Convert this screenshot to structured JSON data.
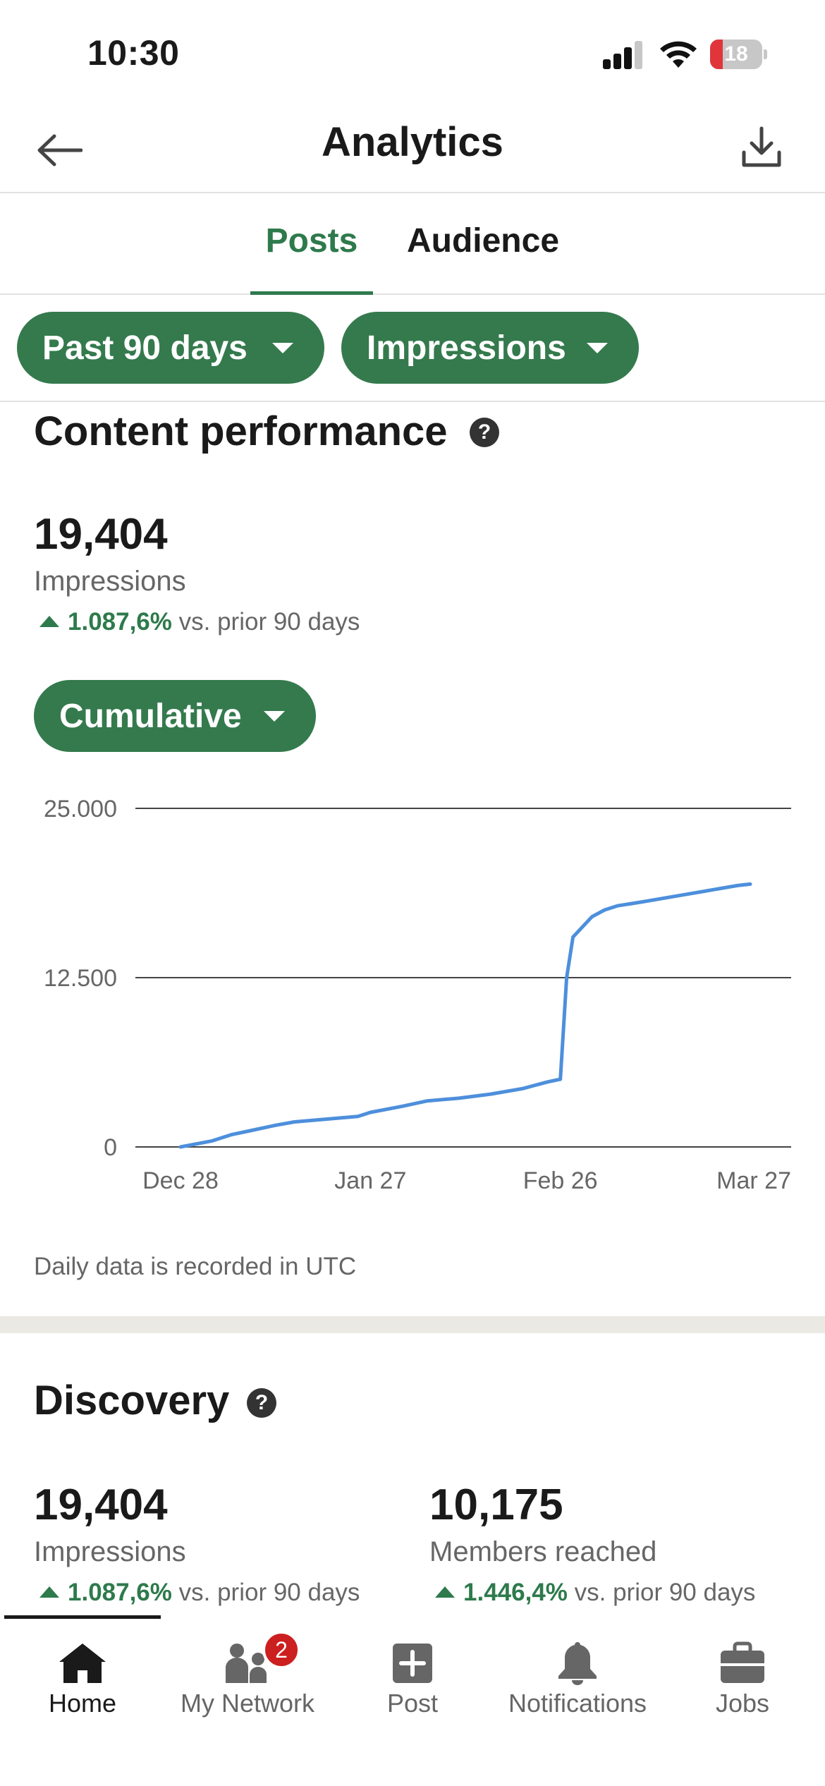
{
  "status_bar": {
    "time": "10:30",
    "battery_level": "18",
    "battery_color": "#e0353b",
    "icons": [
      "signal-icon",
      "wifi-icon",
      "battery-icon"
    ]
  },
  "header": {
    "title": "Analytics",
    "back_icon": "back-arrow-icon",
    "download_icon": "download-icon"
  },
  "tabs": [
    {
      "label": "Posts",
      "active": true
    },
    {
      "label": "Audience",
      "active": false
    }
  ],
  "filters": {
    "range": "Past 90 days",
    "metric": "Impressions"
  },
  "content_performance": {
    "title": "Content performance",
    "help_glyph": "?",
    "value": "19,404",
    "label": "Impressions",
    "change": "1.087,6%",
    "change_suffix": "vs. prior 90 days",
    "view_mode": "Cumulative",
    "note": "Daily data is recorded in UTC"
  },
  "chart_data": {
    "type": "line",
    "xlabel": "",
    "ylabel": "",
    "ylim": [
      0,
      25000
    ],
    "y_ticks": [
      0,
      12500,
      25000
    ],
    "y_tick_labels": [
      "0",
      "12.500",
      "25.000"
    ],
    "x_tick_labels": [
      "Dec 28",
      "Jan 27",
      "Feb 26",
      "Mar 27"
    ],
    "grid": true,
    "line_color": "#4d8fdc",
    "series": [
      {
        "x": [
          "Dec 28",
          "Jan 2",
          "Jan 5",
          "Jan 8",
          "Jan 12",
          "Jan 15",
          "Jan 20",
          "Jan 25",
          "Jan 27",
          "Feb 1",
          "Feb 5",
          "Feb 10",
          "Feb 15",
          "Feb 20",
          "Feb 24",
          "Feb 26",
          "Feb 27",
          "Feb 28",
          "Mar 2",
          "Mar 4",
          "Mar 6",
          "Mar 10",
          "Mar 15",
          "Mar 20",
          "Mar 25",
          "Mar 27"
        ],
        "values": [
          0,
          450,
          900,
          1200,
          1600,
          1850,
          2050,
          2250,
          2550,
          3000,
          3400,
          3600,
          3900,
          4300,
          4800,
          5000,
          12500,
          15500,
          17000,
          17500,
          17800,
          18100,
          18500,
          18900,
          19300,
          19404
        ]
      }
    ]
  },
  "discovery": {
    "title": "Discovery",
    "help_glyph": "?",
    "metrics": [
      {
        "value": "19,404",
        "label": "Impressions",
        "change": "1.087,6%",
        "change_suffix": "vs. prior 90 days"
      },
      {
        "value": "10,175",
        "label": "Members reached",
        "change": "1.446,4%",
        "change_suffix": "vs. prior 90 days"
      }
    ]
  },
  "bottom_nav": {
    "items": [
      {
        "label": "Home",
        "icon": "home-icon",
        "active": true
      },
      {
        "label": "My Network",
        "icon": "network-icon",
        "badge": "2"
      },
      {
        "label": "Post",
        "icon": "post-plus-icon"
      },
      {
        "label": "Notifications",
        "icon": "bell-icon"
      },
      {
        "label": "Jobs",
        "icon": "briefcase-icon"
      }
    ]
  }
}
